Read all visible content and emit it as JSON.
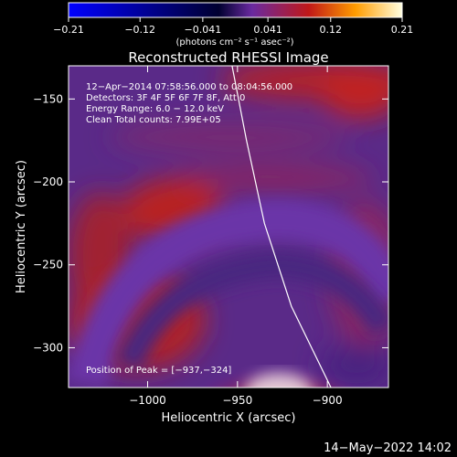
{
  "chart_data": {
    "type": "heatmap",
    "title": "Reconstructed RHESSI Image",
    "xlabel": "Heliocentric X (arcsec)",
    "ylabel": "Heliocentric Y (arcsec)",
    "xlim": [
      -1044,
      -866
    ],
    "ylim": [
      -324,
      -130
    ],
    "x_ticks": [
      -1000,
      -950,
      -900
    ],
    "x_tick_labels": [
      "−1000",
      "−950",
      "−900"
    ],
    "y_ticks": [
      -150,
      -200,
      -250,
      -300
    ],
    "y_tick_labels": [
      "−150",
      "−200",
      "−250",
      "−300"
    ],
    "colorbar": {
      "min": -0.21,
      "max": 0.21,
      "ticks": [
        -0.21,
        -0.12,
        -0.041,
        0.041,
        0.12,
        0.21
      ],
      "tick_labels": [
        "−0.21",
        "−0.12",
        "−0.041",
        "0.041",
        "0.12",
        "0.21"
      ],
      "unit_label": "(photons cm⁻² s⁻¹ asec⁻²)",
      "colors": [
        "#0000ff",
        "#000030",
        "#6a2aa0",
        "#c01818",
        "#ff9c00",
        "#ffffe0"
      ]
    },
    "annotations": [
      "12−Apr−2014 07:58:56.000 to 08:04:56.000",
      "Detectors: 3F 4F 5F 6F 7F 8F, Att 0",
      "Energy Range: 6.0 − 12.0 keV",
      "Clean    Total counts: 7.99E+05"
    ],
    "peak_label": "Position of Peak = [−937,−324]",
    "peak": [
      -937,
      -324
    ],
    "limb_curve": [
      [
        -953,
        -130
      ],
      [
        -945,
        -175
      ],
      [
        -935,
        -225
      ],
      [
        -920,
        -275
      ],
      [
        -898,
        -324
      ]
    ]
  },
  "footer": {
    "timestamp": "14−May−2022 14:02"
  }
}
